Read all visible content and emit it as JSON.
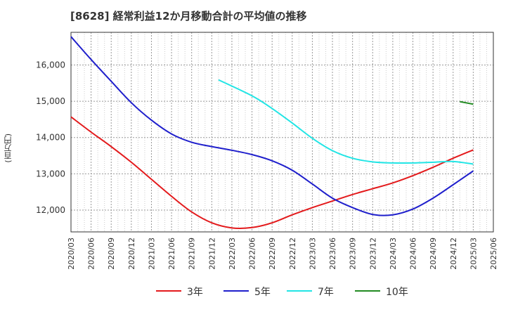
{
  "chart_data": {
    "type": "line",
    "title": "[8628]  経常利益12か月移動合計の平均値の推移",
    "ylabel": "(百万円)",
    "xlabel": "",
    "ylim": [
      11400,
      16900
    ],
    "yticks": [
      12000,
      13000,
      14000,
      15000,
      16000
    ],
    "ytick_labels": [
      "12,000",
      "13,000",
      "14,000",
      "15,000",
      "16,000"
    ],
    "xlim": [
      "2020-03",
      "2025-06"
    ],
    "xtick_labels": [
      "2020/03",
      "2020/06",
      "2020/09",
      "2020/12",
      "2021/03",
      "2021/06",
      "2021/09",
      "2021/12",
      "2022/03",
      "2022/06",
      "2022/09",
      "2022/12",
      "2023/03",
      "2023/06",
      "2023/09",
      "2023/12",
      "2024/03",
      "2024/06",
      "2024/09",
      "2024/12",
      "2025/03",
      "2025/06"
    ],
    "grid": true,
    "legend_position": "bottom",
    "series": [
      {
        "name": "3年",
        "color": "#e31a1c",
        "points": [
          [
            "2020-03",
            14570
          ],
          [
            "2020-06",
            14150
          ],
          [
            "2020-09",
            13750
          ],
          [
            "2020-12",
            13320
          ],
          [
            "2021-03",
            12850
          ],
          [
            "2021-06",
            12380
          ],
          [
            "2021-09",
            11950
          ],
          [
            "2021-12",
            11650
          ],
          [
            "2022-03",
            11510
          ],
          [
            "2022-06",
            11520
          ],
          [
            "2022-09",
            11650
          ],
          [
            "2022-12",
            11870
          ],
          [
            "2023-03",
            12070
          ],
          [
            "2023-06",
            12250
          ],
          [
            "2023-09",
            12430
          ],
          [
            "2023-12",
            12590
          ],
          [
            "2024-03",
            12750
          ],
          [
            "2024-06",
            12950
          ],
          [
            "2024-09",
            13180
          ],
          [
            "2024-12",
            13430
          ],
          [
            "2025-03",
            13660
          ]
        ]
      },
      {
        "name": "5年",
        "color": "#1f1fcc",
        "points": [
          [
            "2020-03",
            16780
          ],
          [
            "2020-06",
            16150
          ],
          [
            "2020-09",
            15550
          ],
          [
            "2020-12",
            14960
          ],
          [
            "2021-03",
            14480
          ],
          [
            "2021-06",
            14100
          ],
          [
            "2021-09",
            13870
          ],
          [
            "2021-12",
            13750
          ],
          [
            "2022-03",
            13650
          ],
          [
            "2022-06",
            13530
          ],
          [
            "2022-09",
            13360
          ],
          [
            "2022-12",
            13100
          ],
          [
            "2023-03",
            12720
          ],
          [
            "2023-06",
            12330
          ],
          [
            "2023-09",
            12070
          ],
          [
            "2023-12",
            11880
          ],
          [
            "2024-03",
            11870
          ],
          [
            "2024-06",
            12030
          ],
          [
            "2024-09",
            12330
          ],
          [
            "2024-12",
            12700
          ],
          [
            "2025-03",
            13080
          ]
        ]
      },
      {
        "name": "7年",
        "color": "#22e5e5",
        "points": [
          [
            "2022-01",
            15590
          ],
          [
            "2022-06",
            15150
          ],
          [
            "2022-09",
            14800
          ],
          [
            "2022-12",
            14400
          ],
          [
            "2023-03",
            13980
          ],
          [
            "2023-06",
            13640
          ],
          [
            "2023-09",
            13430
          ],
          [
            "2023-12",
            13330
          ],
          [
            "2024-03",
            13300
          ],
          [
            "2024-06",
            13300
          ],
          [
            "2024-09",
            13320
          ],
          [
            "2024-12",
            13340
          ],
          [
            "2025-03",
            13270
          ]
        ]
      },
      {
        "name": "10年",
        "color": "#228b22",
        "points": [
          [
            "2025-01",
            14990
          ],
          [
            "2025-03",
            14920
          ]
        ]
      }
    ]
  }
}
